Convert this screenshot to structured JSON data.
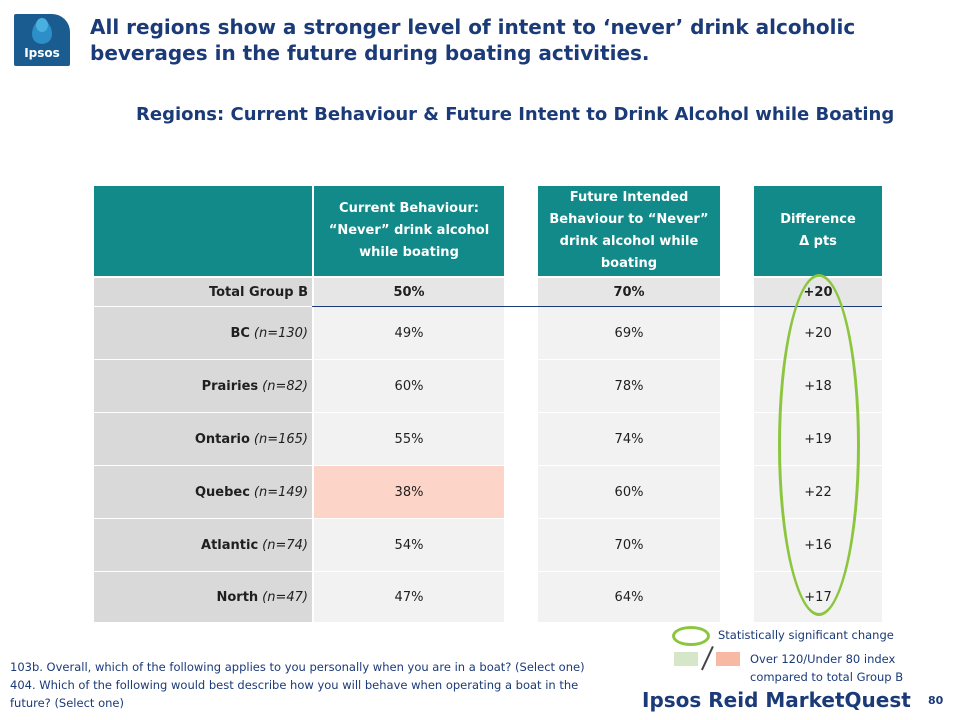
{
  "logo": {
    "brand": "Ipsos"
  },
  "headline": "All regions show a stronger level of intent to ‘never’ drink alcoholic beverages in the future during boating activities.",
  "subtitle": "Regions: Current Behaviour & Future Intent to Drink Alcohol while Boating",
  "table": {
    "headers": {
      "current": "Current Behaviour: “Never” drink alcohol while boating",
      "future": "Future Intended Behaviour to “Never” drink alcohol while boating",
      "difference": "Difference Δ pts"
    },
    "rows": [
      {
        "region": "Total Group B",
        "n": "",
        "current": "50%",
        "future": "70%",
        "diff": "+20"
      },
      {
        "region": "BC",
        "n": "(n=130)",
        "current": "49%",
        "future": "69%",
        "diff": "+20"
      },
      {
        "region": "Prairies",
        "n": "(n=82)",
        "current": "60%",
        "future": "78%",
        "diff": "+18"
      },
      {
        "region": "Ontario",
        "n": "(n=165)",
        "current": "55%",
        "future": "74%",
        "diff": "+19"
      },
      {
        "region": "Quebec",
        "n": "(n=149)",
        "current": "38%",
        "future": "60%",
        "diff": "+22"
      },
      {
        "region": "Atlantic",
        "n": "(n=74)",
        "current": "54%",
        "future": "70%",
        "diff": "+16"
      },
      {
        "region": "North",
        "n": "(n=47)",
        "current": "47%",
        "future": "64%",
        "diff": "+17"
      }
    ]
  },
  "legend": {
    "significant": "Statistically significant change",
    "index": "Over 120/Under 80 index compared to total Group B"
  },
  "footnote": {
    "line1": "103b. Overall, which of the following applies to you personally when you are in a boat? (Select one)",
    "line2": "404. Which of the following would best describe how you will behave when operating a boat in the future? (Select one)"
  },
  "footer_brand": "Ipsos Reid MarketQuest",
  "page_number": "80",
  "colors": {
    "header_teal": "#128a8a",
    "title_navy": "#1b3a78",
    "highlight": "#fcd5c8",
    "oval_green": "#8cc63f"
  }
}
